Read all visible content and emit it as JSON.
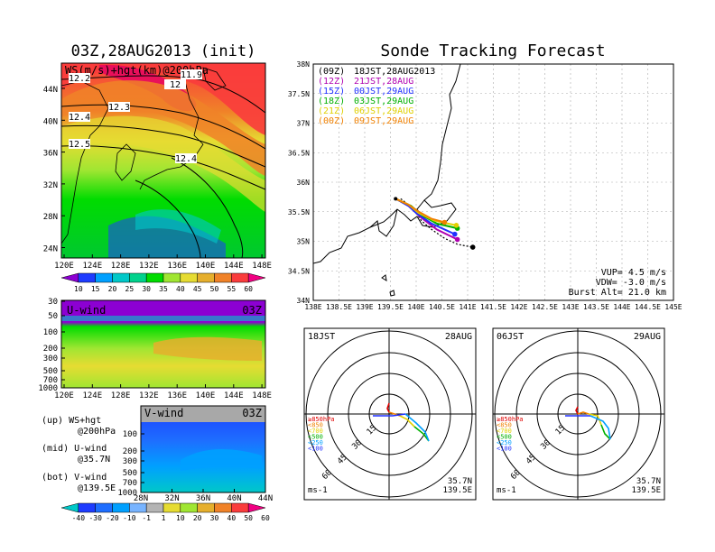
{
  "colors": {
    "ws_scale": [
      "#8c00d2",
      "#1e3cff",
      "#00a0ff",
      "#00c8c8",
      "#00d28c",
      "#00dc00",
      "#a0e632",
      "#e6dc32",
      "#e6af2d",
      "#f08228",
      "#fa3c3c",
      "#f00082"
    ],
    "uv_scale": [
      "#00c8c8",
      "#1e3cff",
      "#1e6eff",
      "#00a0ff",
      "#78b4ff",
      "#b4b4b4",
      "#e6dc32",
      "#a0e632",
      "#e6af2d",
      "#f08228",
      "#fa3c3c",
      "#f00082"
    ],
    "track_12z": "#b000b0",
    "track_15z": "#2030ff",
    "track_18z": "#00b000",
    "track_21z": "#e0d000",
    "track_00z": "#f08000"
  },
  "map_panel": {
    "title": "03Z,28AUG2013 (init)",
    "label": "WS(m/s)+hgt(km)@200hPa",
    "contour_labels": [
      "12.2",
      "11.9",
      "12",
      "12.3",
      "12.4",
      "12.5",
      "12.4"
    ],
    "x_ticks": [
      "120E",
      "124E",
      "128E",
      "132E",
      "136E",
      "140E",
      "144E",
      "148E"
    ],
    "y_ticks": [
      "44N",
      "40N",
      "36N",
      "32N",
      "28N",
      "24N"
    ],
    "colorbar_labels": [
      "10",
      "15",
      "20",
      "25",
      "30",
      "35",
      "40",
      "45",
      "50",
      "55",
      "60"
    ]
  },
  "u_panel": {
    "label": "U-wind",
    "time": "03Z",
    "y_ticks": [
      "30",
      "50",
      "100",
      "200",
      "300",
      "500",
      "700",
      "1000"
    ],
    "x_ticks": [
      "120E",
      "124E",
      "128E",
      "132E",
      "136E",
      "140E",
      "144E",
      "148E"
    ]
  },
  "v_panel": {
    "label": "V-wind",
    "time": "03Z",
    "y_ticks": [
      "100",
      "200",
      "300",
      "500",
      "700",
      "1000"
    ],
    "x_ticks": [
      "28N",
      "32N",
      "36N",
      "40N",
      "44N"
    ],
    "colorbar_labels": [
      "-40",
      "-30",
      "-20",
      "-10",
      "-1",
      "1",
      "10",
      "20",
      "30",
      "40",
      "50",
      "60"
    ]
  },
  "legend_text": {
    "up": "(up) WS+hgt",
    "up2": "@200hPa",
    "mid": "(mid) U-wind",
    "mid2": "@35.7N",
    "bot": "(bot) V-wind",
    "bot2": "@139.5E"
  },
  "track_panel": {
    "title": "Sonde Tracking Forecast",
    "x_ticks": [
      "138E",
      "138.5E",
      "139E",
      "139.5E",
      "140E",
      "140.5E",
      "141E",
      "141.5E",
      "142E",
      "142.5E",
      "143E",
      "143.5E",
      "144E",
      "144.5E",
      "145E"
    ],
    "y_ticks": [
      "38N",
      "37.5N",
      "37N",
      "36.5N",
      "36N",
      "35.5N",
      "35N",
      "34.5N",
      "34N"
    ],
    "legend": [
      {
        "code": "(09Z)",
        "time": "18JST,28AUG2013"
      },
      {
        "code": "(12Z)",
        "time": "21JST,28AUG"
      },
      {
        "code": "(15Z)",
        "time": "00JST,29AUG"
      },
      {
        "code": "(18Z)",
        "time": "03JST,29AUG"
      },
      {
        "code": "(21Z)",
        "time": "06JST,29AUG"
      },
      {
        "code": "(00Z)",
        "time": "09JST,29AUG"
      }
    ],
    "params": {
      "vup": "VUP=  4.5 m/s",
      "vdw": "VDW= -3.0 m/s",
      "burst": "Burst Alt= 21.0 km"
    }
  },
  "hodograph_left": {
    "time": "18JST",
    "date": "28AUG",
    "ring_labels": [
      "15",
      "30",
      "45",
      "60"
    ],
    "levels": [
      "≥850hPa",
      "<850",
      "<700",
      "<500",
      "<250",
      "<100"
    ],
    "unit": "ms-1",
    "lat": "35.7N",
    "lon": "139.5E"
  },
  "hodograph_right": {
    "time": "06JST",
    "date": "29AUG",
    "ring_labels": [
      "15",
      "30",
      "45",
      "60"
    ],
    "levels": [
      "≥850hPa",
      "<850",
      "<700",
      "<500",
      "<250",
      "<100"
    ],
    "unit": "ms-1",
    "lat": "35.7N",
    "lon": "139.5E"
  },
  "chart_data": [
    {
      "type": "heatmap",
      "title": "03Z,28AUG2013 (init)",
      "field": "WS(m/s)+hgt(km)@200hPa",
      "xlim": [
        120,
        150
      ],
      "ylim": [
        22,
        47
      ],
      "contours_km": [
        11.9,
        12,
        12.2,
        12.3,
        12.4,
        12.5
      ],
      "colorbar": [
        10,
        15,
        20,
        25,
        30,
        35,
        40,
        45,
        50,
        55,
        60
      ]
    },
    {
      "type": "heatmap",
      "title": "U-wind 03Z",
      "xlim": [
        120,
        150
      ],
      "pressure_levels_hPa": [
        30,
        50,
        100,
        200,
        300,
        500,
        700,
        1000
      ]
    },
    {
      "type": "heatmap",
      "title": "V-wind 03Z",
      "xlim": [
        28,
        44
      ],
      "pressure_levels_hPa": [
        100,
        200,
        300,
        500,
        700,
        1000
      ],
      "colorbar": [
        -40,
        -30,
        -20,
        -10,
        -1,
        1,
        10,
        20,
        30,
        40,
        50,
        60
      ]
    },
    {
      "type": "line",
      "title": "Sonde Tracking Forecast",
      "xlim": [
        138,
        145
      ],
      "ylim": [
        34,
        38
      ],
      "series": [
        {
          "name": "(09Z) 18JST,28AUG2013",
          "x": [
            139.7,
            139.95,
            140.1,
            140.3,
            140.55,
            140.8,
            141.1
          ],
          "y": [
            35.72,
            35.55,
            35.35,
            35.2,
            35.05,
            34.95,
            34.9
          ]
        },
        {
          "name": "(12Z) 21JST,28AUG",
          "x": [
            139.6,
            139.85,
            140.1,
            140.4,
            140.8
          ],
          "y": [
            35.72,
            35.6,
            35.4,
            35.2,
            35.03
          ]
        },
        {
          "name": "(15Z) 00JST,29AUG",
          "x": [
            139.6,
            139.85,
            140.0,
            140.3,
            140.75
          ],
          "y": [
            35.72,
            35.6,
            35.48,
            35.3,
            35.12
          ]
        },
        {
          "name": "(18Z) 03JST,29AUG",
          "x": [
            139.6,
            139.9,
            140.1,
            140.4,
            140.8
          ],
          "y": [
            35.72,
            35.6,
            35.45,
            35.3,
            35.22
          ]
        },
        {
          "name": "(21Z) 06JST,29AUG",
          "x": [
            139.6,
            139.85,
            140.05,
            140.35,
            140.78
          ],
          "y": [
            35.72,
            35.62,
            35.48,
            35.35,
            35.27
          ]
        },
        {
          "name": "(00Z) 09JST,29AUG",
          "x": [
            139.6,
            139.85,
            140.05,
            140.3,
            140.55
          ],
          "y": [
            35.72,
            35.62,
            35.5,
            35.38,
            35.32
          ]
        }
      ]
    }
  ]
}
